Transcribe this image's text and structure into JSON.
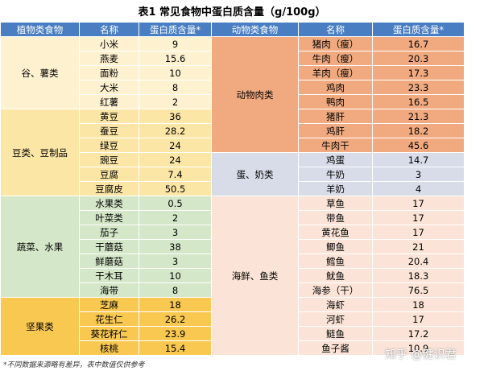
{
  "title": "表1 常见食物中蛋白质含量（g/100g）",
  "left": {
    "headers": [
      "植物类食物",
      "名称",
      "蛋白质含量*"
    ],
    "groups": [
      {
        "label": "谷、薯类",
        "color": "#fdf1cf",
        "rows": [
          [
            "小米",
            9
          ],
          [
            "燕麦",
            15.6
          ],
          [
            "面粉",
            10
          ],
          [
            "大米",
            8
          ],
          [
            "红薯",
            2
          ]
        ]
      },
      {
        "label": "豆类、豆制品",
        "color": "#fce6a6",
        "rows": [
          [
            "黄豆",
            36
          ],
          [
            "蚕豆",
            28.2
          ],
          [
            "绿豆",
            24
          ],
          [
            "豌豆",
            24
          ],
          [
            "豆腐",
            7.4
          ],
          [
            "豆腐皮",
            50.5
          ]
        ]
      },
      {
        "label": "蔬菜、水果",
        "color": "#d4e7c8",
        "rows": [
          [
            "水果类",
            0.5
          ],
          [
            "叶菜类",
            2
          ],
          [
            "茄子",
            3
          ],
          [
            "干蘑菇",
            38
          ],
          [
            "鲜蘑菇",
            3
          ],
          [
            "干木耳",
            10
          ],
          [
            "海带",
            8
          ]
        ]
      },
      {
        "label": "坚果类",
        "color": "#f8c850",
        "rows": [
          [
            "芝麻",
            18
          ],
          [
            "花生仁",
            26.2
          ],
          [
            "葵花籽仁",
            23.9
          ],
          [
            "核桃",
            15.4
          ]
        ]
      }
    ]
  },
  "right": {
    "headers": [
      "动物类食物",
      "名称",
      "蛋白质含量*"
    ],
    "groups": [
      {
        "label": "动物肉类",
        "color": "#f1aa80",
        "rows": [
          [
            "猪肉（瘦）",
            16.7
          ],
          [
            "牛肉（瘦）",
            20.3
          ],
          [
            "羊肉（瘦）",
            17.3
          ],
          [
            "鸡肉",
            23.3
          ],
          [
            "鸭肉",
            16.5
          ],
          [
            "猪肝",
            21.3
          ],
          [
            "鸡肝",
            18.2
          ],
          [
            "牛肉干",
            45.6
          ]
        ]
      },
      {
        "label": "蛋、奶类",
        "color": "#d7dce8",
        "rows": [
          [
            "鸡蛋",
            14.7
          ],
          [
            "牛奶",
            3
          ],
          [
            "羊奶",
            4
          ]
        ]
      },
      {
        "label": "海鲜、鱼类",
        "color": "#fbe4d7",
        "rows": [
          [
            "草鱼",
            17
          ],
          [
            "带鱼",
            17
          ],
          [
            "黄花鱼",
            17
          ],
          [
            "鲫鱼",
            21
          ],
          [
            "鳕鱼",
            20.4
          ],
          [
            "鱿鱼",
            18.3
          ],
          [
            "海参（干）",
            76.5
          ],
          [
            "海虾",
            18
          ],
          [
            "河虾",
            17
          ],
          [
            "鲢鱼",
            17.2
          ],
          [
            "鱼子酱",
            10.9
          ]
        ]
      }
    ]
  },
  "footnote": "*不同数据来源略有差异，表中数值仅供参考",
  "watermark": "知乎 @健识君"
}
